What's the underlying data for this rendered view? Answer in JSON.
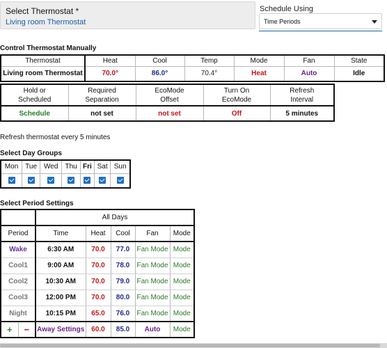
{
  "select_thermostat": {
    "label": "Select Thermostat *",
    "value": "Living room Thermostat"
  },
  "schedule_using": {
    "label": "Schedule Using",
    "value": "Time Periods"
  },
  "control": {
    "title": "Control Thermostat Manually",
    "headers": [
      "Thermostat",
      "Heat",
      "Cool",
      "Temp",
      "Mode",
      "Fan",
      "State"
    ],
    "row": {
      "thermostat": "Living room Thermostat",
      "heat": "70.0°",
      "cool": "86.0°",
      "temp": "70.4°",
      "mode": "Heat",
      "fan": "Auto",
      "state": "Idle"
    },
    "headers2": [
      "Hold or Scheduled",
      "Required Separation",
      "EcoMode Offset",
      "Turn On EcoMode",
      "Refresh Interval"
    ],
    "headers2_lines": [
      [
        "Hold or",
        "Scheduled"
      ],
      [
        "Required",
        "Separation"
      ],
      [
        "EcoMode",
        "Offset"
      ],
      [
        "Turn On",
        "EcoMode"
      ],
      [
        "Refresh",
        "Interval"
      ]
    ],
    "row2": {
      "hold": "Schedule",
      "separation": "not set",
      "eco_offset": "not set",
      "eco_on": "Off",
      "refresh": "5 minutes"
    }
  },
  "refresh_text": "Refresh thermostat every 5 minutes",
  "day_groups": {
    "title": "Select Day Groups",
    "days": [
      "Mon",
      "Tue",
      "Wed",
      "Thu",
      "Fri",
      "Sat",
      "Sun"
    ],
    "checked": [
      true,
      true,
      true,
      true,
      true,
      true,
      true
    ]
  },
  "periods": {
    "title": "Select Period Settings",
    "group_header": "All Days",
    "headers": [
      "Period",
      "Time",
      "Heat",
      "Cool",
      "Fan",
      "Mode"
    ],
    "rows": [
      {
        "period": "Wake",
        "time": "6:30 AM",
        "heat": "70.0",
        "cool": "77.0",
        "fan": "Fan Mode",
        "mode": "Mode"
      },
      {
        "period": "Cool1",
        "time": "9:00 AM",
        "heat": "70.0",
        "cool": "78.0",
        "fan": "Fan Mode",
        "mode": "Mode"
      },
      {
        "period": "Cool2",
        "time": "10:30 AM",
        "heat": "70.0",
        "cool": "79.0",
        "fan": "Fan Mode",
        "mode": "Mode"
      },
      {
        "period": "Cool3",
        "time": "12:00 PM",
        "heat": "70.0",
        "cool": "80.0",
        "fan": "Fan Mode",
        "mode": "Mode"
      },
      {
        "period": "Night",
        "time": "10:15 PM",
        "heat": "65.0",
        "cool": "76.0",
        "fan": "Fan Mode",
        "mode": "Mode"
      }
    ],
    "footer": {
      "add": "+",
      "remove": "−",
      "away": "Away Settings",
      "heat": "60.0",
      "cool": "85.0",
      "fan": "Auto",
      "mode": "Mode"
    }
  },
  "colors": {
    "link_blue": "#1a5fa8",
    "heat_red": "#c0141a",
    "cool_navy": "#1c2b8c",
    "schedule_green": "#2a7a2a",
    "accent_purple": "#6a2fa0",
    "checkbox_blue": "#1e6fc2"
  }
}
